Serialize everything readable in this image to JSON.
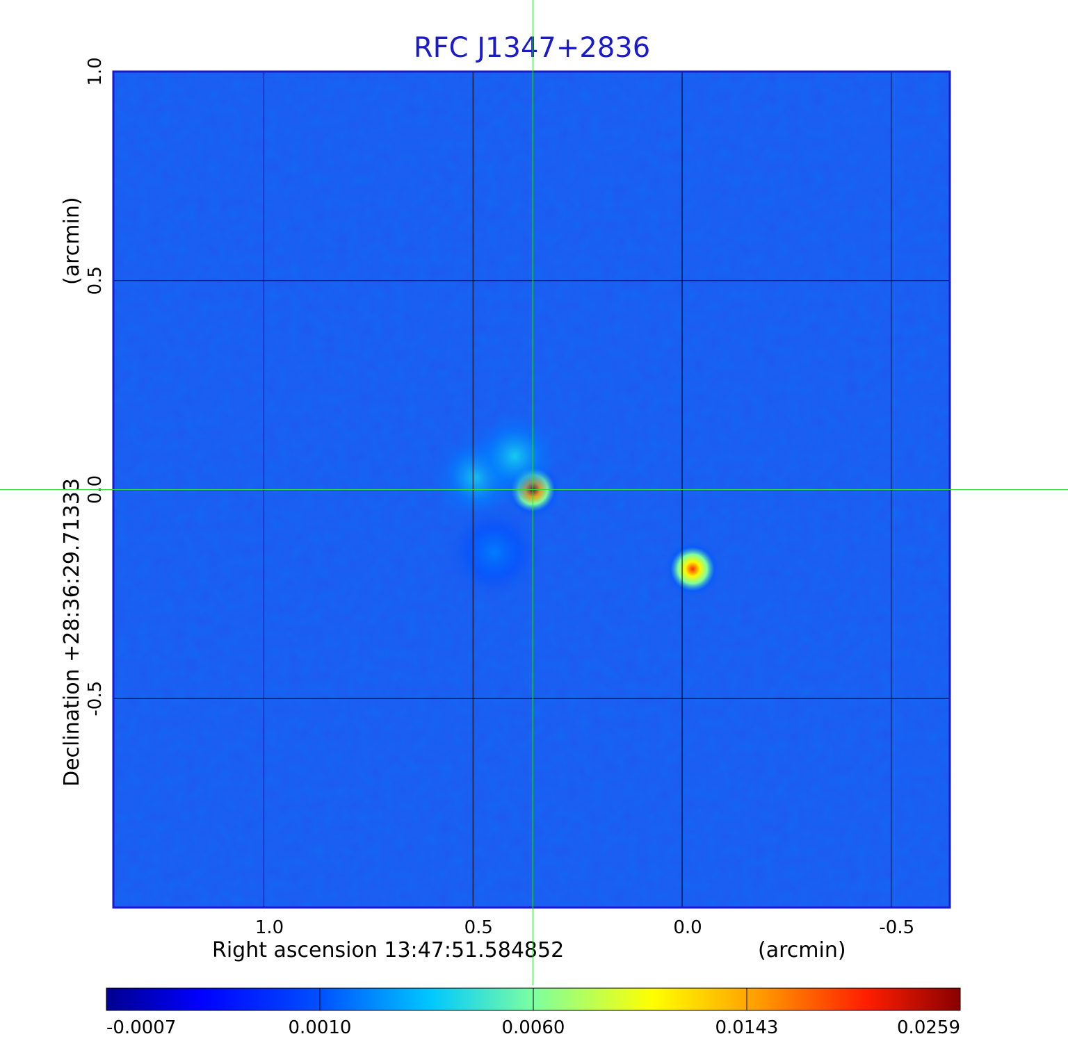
{
  "chart_data": {
    "type": "heatmap",
    "title": "RFC J1347+2836",
    "xlabel": "Right ascension  13:47:51.584852",
    "xunit": "(arcmin)",
    "ylabel": "Declination  +28:36:29.71333",
    "yunit": "(arcmin)",
    "x_axis": {
      "ticks": [
        1.0,
        0.5,
        0.0,
        -0.5
      ],
      "tick_labels": [
        "1.0",
        "0.5",
        "0.0",
        "-0.5"
      ],
      "range": [
        1.36,
        -0.64
      ],
      "direction": "decreasing"
    },
    "y_axis": {
      "ticks": [
        1.0,
        0.5,
        0.0,
        -0.5
      ],
      "tick_labels": [
        "1.0",
        "0.5",
        "0.0",
        "-0.5"
      ],
      "range": [
        -1.0,
        1.0
      ]
    },
    "grid": true,
    "crosshair": {
      "x": 0.357,
      "y": 0.0,
      "color": "#33dd33"
    },
    "sources": [
      {
        "x": 0.357,
        "y": 0.0,
        "peak": 0.0259,
        "type": "compact core"
      },
      {
        "x": -0.025,
        "y": -0.19,
        "peak": 0.02,
        "type": "compact"
      },
      {
        "x": 0.49,
        "y": 0.03,
        "peak": 0.004,
        "type": "diffuse"
      },
      {
        "x": 0.4,
        "y": 0.08,
        "peak": 0.004,
        "type": "diffuse"
      },
      {
        "x": 0.45,
        "y": -0.15,
        "peak": 0.002,
        "type": "diffuse"
      }
    ],
    "colorbar": {
      "colormap": "jet",
      "ticks": [
        -0.0007,
        0.001,
        0.006,
        0.0143,
        0.0259
      ],
      "tick_labels": [
        "-0.0007",
        "0.0010",
        "0.0060",
        "0.0143",
        "0.0259"
      ],
      "placement": "bottom"
    },
    "frame_color": "#1a1acc"
  }
}
